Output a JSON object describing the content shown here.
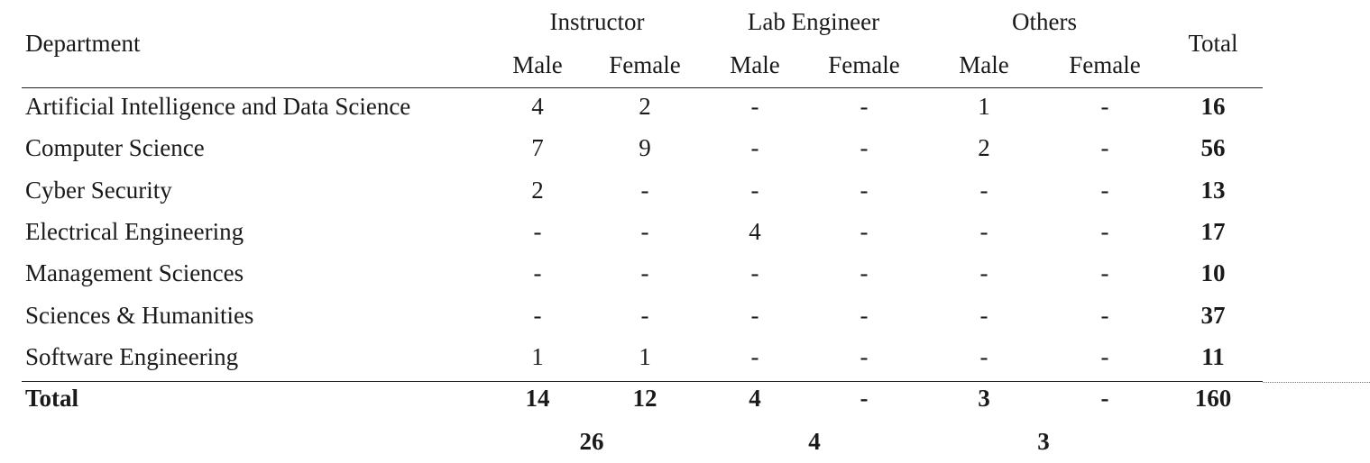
{
  "table": {
    "header": {
      "department": "Department",
      "total": "Total",
      "groups": [
        "Instructor",
        "Lab Engineer",
        "Others"
      ],
      "subheaders": [
        "Male",
        "Female",
        "Male",
        "Female",
        "Male",
        "Female"
      ]
    },
    "rows": [
      {
        "department": "Artificial Intelligence and Data Science",
        "values": [
          "4",
          "2",
          "-",
          "-",
          "1",
          "-"
        ],
        "total": "16"
      },
      {
        "department": "Computer Science",
        "values": [
          "7",
          "9",
          "-",
          "-",
          "2",
          "-"
        ],
        "total": "56"
      },
      {
        "department": "Cyber Security",
        "values": [
          "2",
          "-",
          "-",
          "-",
          "-",
          "-"
        ],
        "total": "13"
      },
      {
        "department": "Electrical Engineering",
        "values": [
          "-",
          "-",
          "4",
          "-",
          "-",
          "-"
        ],
        "total": "17"
      },
      {
        "department": "Management Sciences",
        "values": [
          "-",
          "-",
          "-",
          "-",
          "-",
          "-"
        ],
        "total": "10"
      },
      {
        "department": "Sciences & Humanities",
        "values": [
          "-",
          "-",
          "-",
          "-",
          "-",
          "-"
        ],
        "total": "37"
      },
      {
        "department": "Software Engineering",
        "values": [
          "1",
          "1",
          "-",
          "-",
          "-",
          "-"
        ],
        "total": "11"
      }
    ],
    "total_row": {
      "label": "Total",
      "values": [
        "14",
        "12",
        "4",
        "-",
        "3",
        "-"
      ],
      "total": "160"
    },
    "group_totals": [
      "26",
      "4",
      "3"
    ]
  }
}
